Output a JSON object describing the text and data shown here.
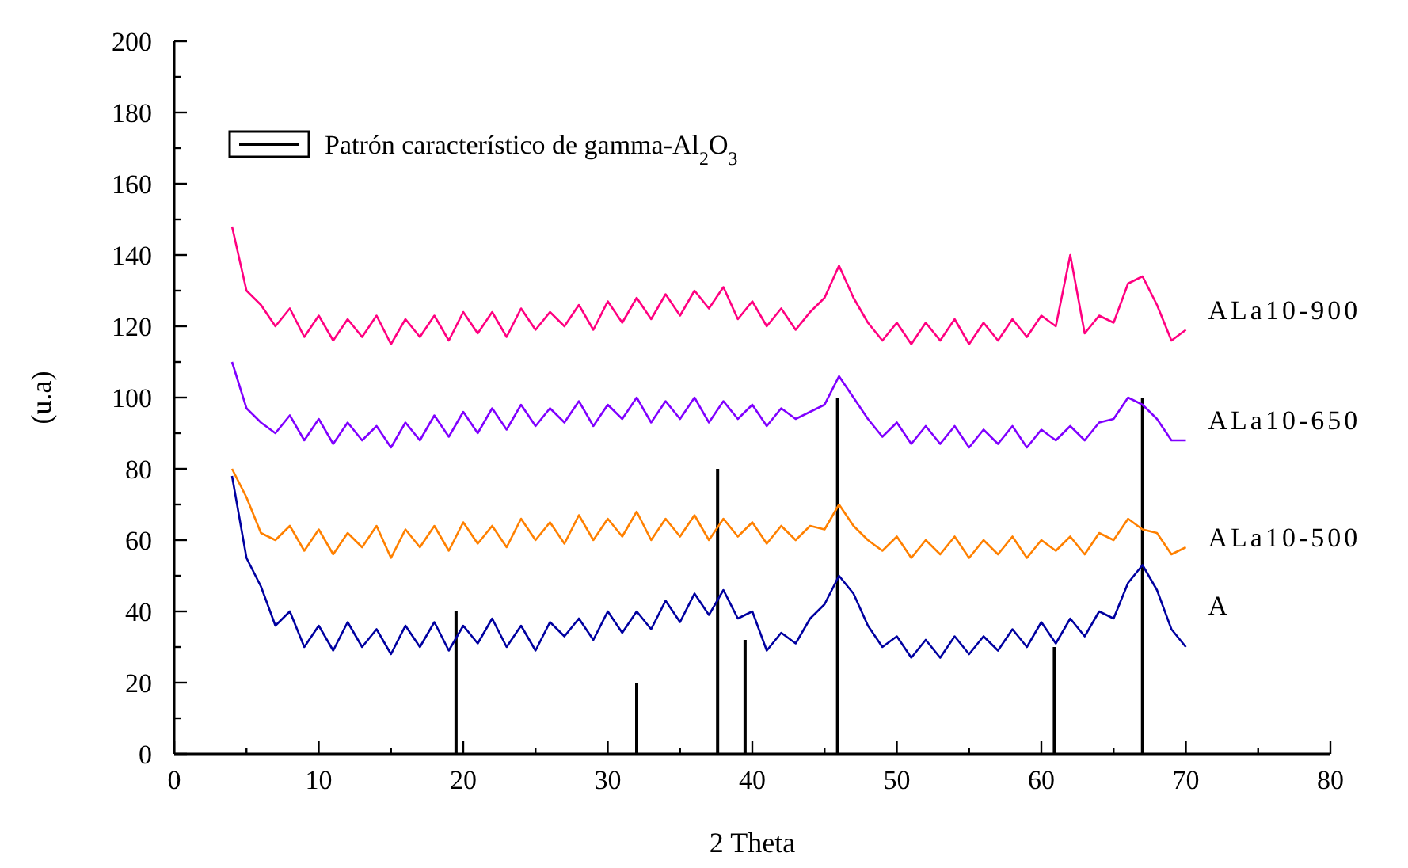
{
  "chart_data": {
    "type": "line",
    "xlabel": "2 Theta",
    "ylabel": "(u.a)",
    "xlim": [
      0,
      80
    ],
    "ylim": [
      0,
      200
    ],
    "xticks": [
      0,
      {
        "value": 5,
        "label": null
      },
      10,
      {
        "value": 15,
        "label": null
      },
      20,
      {
        "value": 25,
        "label": null
      },
      30,
      {
        "value": 35,
        "label": null
      },
      40,
      {
        "value": 45,
        "label": null
      },
      50,
      {
        "value": 55,
        "label": null
      },
      60,
      {
        "value": 65,
        "label": null
      },
      70,
      {
        "value": 75,
        "label": null
      },
      80
    ],
    "yticks": [
      0,
      {
        "value": 10,
        "label": null
      },
      20,
      {
        "value": 30,
        "label": null
      },
      40,
      {
        "value": 50,
        "label": null
      },
      60,
      {
        "value": 70,
        "label": null
      },
      80,
      {
        "value": 90,
        "label": null
      },
      100,
      {
        "value": 110,
        "label": null
      },
      120,
      {
        "value": 130,
        "label": null
      },
      140,
      {
        "value": 150,
        "label": null
      },
      160,
      {
        "value": 170,
        "label": null
      },
      180,
      {
        "value": 190,
        "label": null
      },
      200
    ],
    "grid": false,
    "legend": "top left",
    "marker": "none",
    "line_style": "solid",
    "x": [
      4,
      5,
      6,
      7,
      8,
      9,
      10,
      11,
      12,
      13,
      14,
      15,
      16,
      17,
      18,
      19,
      20,
      21,
      22,
      23,
      24,
      25,
      26,
      27,
      28,
      29,
      30,
      31,
      32,
      33,
      34,
      35,
      36,
      37,
      38,
      39,
      40,
      41,
      42,
      43,
      44,
      45,
      46,
      47,
      48,
      49,
      50,
      51,
      52,
      53,
      54,
      55,
      56,
      57,
      58,
      59,
      60,
      61,
      62,
      63,
      64,
      65,
      66,
      67,
      68,
      69,
      70
    ],
    "series": [
      {
        "type": "bar",
        "name": "Patrón característico de gamma-Al$_{2}$O$_{3}$",
        "color": "#000000",
        "x": [
          19.5,
          32,
          37.6,
          39.5,
          45.9,
          60.9,
          67
        ],
        "values": [
          40,
          20,
          80,
          32,
          100,
          30,
          100
        ]
      },
      {
        "name": "A",
        "color": "#0000a0",
        "values": [
          78,
          55,
          47,
          36,
          40,
          30,
          36,
          29,
          37,
          30,
          35,
          28,
          36,
          30,
          37,
          29,
          36,
          31,
          38,
          30,
          36,
          29,
          37,
          33,
          38,
          32,
          40,
          34,
          40,
          35,
          43,
          37,
          45,
          39,
          46,
          38,
          40,
          29,
          34,
          31,
          38,
          42,
          50,
          45,
          36,
          30,
          33,
          27,
          32,
          27,
          33,
          28,
          33,
          29,
          35,
          30,
          37,
          31,
          38,
          33,
          40,
          38,
          48,
          53,
          46,
          35,
          30
        ]
      },
      {
        "name": "ALa10-500",
        "color": "#ff8000",
        "values": [
          80,
          72,
          62,
          60,
          64,
          57,
          63,
          56,
          62,
          58,
          64,
          55,
          63,
          58,
          64,
          57,
          65,
          59,
          64,
          58,
          66,
          60,
          65,
          59,
          67,
          60,
          66,
          61,
          68,
          60,
          66,
          61,
          67,
          60,
          66,
          61,
          65,
          59,
          64,
          60,
          64,
          63,
          70,
          64,
          60,
          57,
          61,
          55,
          60,
          56,
          61,
          55,
          60,
          56,
          61,
          55,
          60,
          57,
          61,
          56,
          62,
          60,
          66,
          63,
          62,
          56,
          58
        ]
      },
      {
        "name": "ALa10-650",
        "color": "#8000ff",
        "values": [
          110,
          97,
          93,
          90,
          95,
          88,
          94,
          87,
          93,
          88,
          92,
          86,
          93,
          88,
          95,
          89,
          96,
          90,
          97,
          91,
          98,
          92,
          97,
          93,
          99,
          92,
          98,
          94,
          100,
          93,
          99,
          94,
          100,
          93,
          99,
          94,
          98,
          92,
          97,
          94,
          96,
          98,
          106,
          100,
          94,
          89,
          93,
          87,
          92,
          87,
          92,
          86,
          91,
          87,
          92,
          86,
          91,
          88,
          92,
          88,
          93,
          94,
          100,
          98,
          94,
          88,
          88
        ]
      },
      {
        "name": "ALa10-900",
        "color": "#ff0080",
        "values": [
          148,
          130,
          126,
          120,
          125,
          117,
          123,
          116,
          122,
          117,
          123,
          115,
          122,
          117,
          123,
          116,
          124,
          118,
          124,
          117,
          125,
          119,
          124,
          120,
          126,
          119,
          127,
          121,
          128,
          122,
          129,
          123,
          130,
          125,
          131,
          122,
          127,
          120,
          125,
          119,
          124,
          128,
          137,
          128,
          121,
          116,
          121,
          115,
          121,
          116,
          122,
          115,
          121,
          116,
          122,
          117,
          123,
          120,
          140,
          118,
          123,
          121,
          132,
          134,
          126,
          116,
          119
        ]
      }
    ]
  }
}
